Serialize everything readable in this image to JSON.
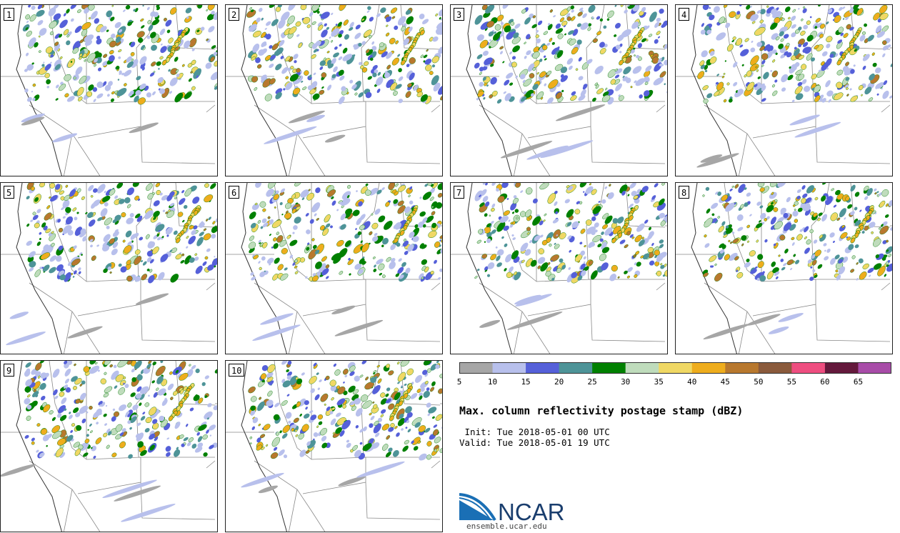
{
  "chart_data": {
    "type": "postage_stamp_maps",
    "title": "Max. column reflectivity postage stamp (dBZ)",
    "units": "dBZ",
    "panels": [
      "1",
      "2",
      "3",
      "4",
      "5",
      "6",
      "7",
      "8",
      "9",
      "10"
    ],
    "colorbar": {
      "bounds": [
        5,
        10,
        15,
        20,
        25,
        30,
        35,
        40,
        45,
        50,
        55,
        60,
        65,
        70
      ],
      "tick_labels": [
        "5",
        "10",
        "15",
        "20",
        "25",
        "30",
        "35",
        "40",
        "45",
        "50",
        "55",
        "60",
        "65"
      ],
      "colors": [
        "#a6a6a6",
        "#b8c0ec",
        "#5560d9",
        "#4e9498",
        "#008000",
        "#bfdcbc",
        "#f0d864",
        "#eead1d",
        "#b8782e",
        "#8a5a3c",
        "#ee4e80",
        "#64193c",
        "#a84ca8"
      ]
    }
  },
  "info": {
    "init_text": " Init: Tue 2018-05-01 00 UTC",
    "valid_text": "Valid: Tue 2018-05-01 19 UTC"
  },
  "logo": {
    "name": "NCAR",
    "url": "ensemble.ucar.edu"
  }
}
